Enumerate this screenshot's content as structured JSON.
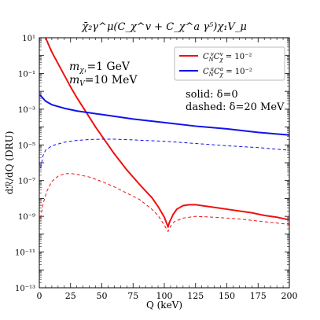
{
  "chart_data": {
    "type": "line",
    "title": "χ̄₂γ^μ(C_χ^v + C_χ^a γ⁵)χ₁V_μ",
    "xlabel": "Q (keV)",
    "ylabel": "dℛ/dQ (DRU)",
    "xlim": [
      0,
      200
    ],
    "ylim_log10": [
      -13,
      1
    ],
    "y_scale": "log",
    "x_ticks": [
      0,
      25,
      50,
      75,
      100,
      125,
      150,
      175,
      200
    ],
    "y_ticks": [
      {
        "exp": 1,
        "label": "10¹"
      },
      {
        "exp": -1,
        "label": "10⁻¹"
      },
      {
        "exp": -3,
        "label": "10⁻³"
      },
      {
        "exp": -5,
        "label": "10⁻⁵"
      },
      {
        "exp": -7,
        "label": "10⁻⁷"
      },
      {
        "exp": -9,
        "label": "10⁻⁹"
      },
      {
        "exp": -11,
        "label": "10⁻¹¹"
      },
      {
        "exp": -13,
        "label": "10⁻¹³"
      }
    ],
    "annotations": [
      {
        "text": "m_χ1=1 GeV",
        "main": "m",
        "sub": "χ₁",
        "rest": "=1 GeV"
      },
      {
        "text": "m_V=10 MeV",
        "main": "m",
        "sub": "V",
        "rest": "=10 MeV"
      },
      {
        "text": "solid: δ=0"
      },
      {
        "text": "dashed: δ=20 MeV"
      }
    ],
    "legend_position": "top-right",
    "series": [
      {
        "name": "C_N^v C_χ^v = 10⁻²",
        "legend_main": "C",
        "legend_sub1": "N",
        "legend_sup1": "v",
        "legend_main2": "C",
        "legend_sub2": "χ",
        "legend_sup2": "v",
        "legend_rest": " = 10⁻²",
        "color": "#ee1111",
        "style": "solid",
        "points": [
          [
            0.5,
            3.0
          ],
          [
            2,
            1.8
          ],
          [
            5,
            1.0
          ],
          [
            10,
            0.2
          ],
          [
            15,
            -0.45
          ],
          [
            20,
            -1.1
          ],
          [
            25,
            -1.75
          ],
          [
            30,
            -2.35
          ],
          [
            35,
            -2.9
          ],
          [
            40,
            -3.45
          ],
          [
            45,
            -4.0
          ],
          [
            50,
            -4.5
          ],
          [
            60,
            -5.5
          ],
          [
            70,
            -6.4
          ],
          [
            80,
            -7.2
          ],
          [
            90,
            -7.95
          ],
          [
            95,
            -8.45
          ],
          [
            100,
            -9.05
          ],
          [
            103,
            -9.6
          ],
          [
            104,
            -9.35
          ],
          [
            107,
            -8.9
          ],
          [
            110,
            -8.6
          ],
          [
            115,
            -8.4
          ],
          [
            120,
            -8.35
          ],
          [
            125,
            -8.35
          ],
          [
            130,
            -8.4
          ],
          [
            140,
            -8.5
          ],
          [
            150,
            -8.6
          ],
          [
            160,
            -8.7
          ],
          [
            170,
            -8.8
          ],
          [
            180,
            -8.95
          ],
          [
            190,
            -9.05
          ],
          [
            200,
            -9.2
          ]
        ]
      },
      {
        "name": "C_N^a C_χ^a = 10⁻²",
        "legend_main": "C",
        "legend_sub1": "N",
        "legend_sup1": "a",
        "legend_main2": "C",
        "legend_sub2": "χ",
        "legend_sup2": "a",
        "legend_rest": " = 10⁻²",
        "color": "#1111ee",
        "style": "solid",
        "points": [
          [
            0.5,
            -2.2
          ],
          [
            5,
            -2.55
          ],
          [
            10,
            -2.75
          ],
          [
            20,
            -2.95
          ],
          [
            30,
            -3.1
          ],
          [
            50,
            -3.3
          ],
          [
            75,
            -3.55
          ],
          [
            100,
            -3.75
          ],
          [
            125,
            -3.95
          ],
          [
            150,
            -4.1
          ],
          [
            175,
            -4.3
          ],
          [
            200,
            -4.45
          ]
        ]
      },
      {
        "name": "",
        "color": "#1111ee",
        "style": "dashed",
        "points": [
          [
            1,
            -6.3
          ],
          [
            3,
            -5.6
          ],
          [
            5,
            -5.3
          ],
          [
            10,
            -5.05
          ],
          [
            20,
            -4.85
          ],
          [
            30,
            -4.75
          ],
          [
            40,
            -4.7
          ],
          [
            50,
            -4.68
          ],
          [
            60,
            -4.68
          ],
          [
            75,
            -4.72
          ],
          [
            100,
            -4.8
          ],
          [
            125,
            -4.92
          ],
          [
            150,
            -5.05
          ],
          [
            175,
            -5.15
          ],
          [
            200,
            -5.3
          ]
        ]
      },
      {
        "name": "",
        "color": "#ee1111",
        "style": "dashed",
        "points": [
          [
            1,
            -9.1
          ],
          [
            3,
            -8.3
          ],
          [
            6,
            -7.6
          ],
          [
            10,
            -7.05
          ],
          [
            15,
            -6.75
          ],
          [
            20,
            -6.62
          ],
          [
            25,
            -6.6
          ],
          [
            30,
            -6.65
          ],
          [
            40,
            -6.8
          ],
          [
            50,
            -7.05
          ],
          [
            60,
            -7.35
          ],
          [
            70,
            -7.7
          ],
          [
            80,
            -8.05
          ],
          [
            90,
            -8.6
          ],
          [
            95,
            -8.95
          ],
          [
            100,
            -9.5
          ],
          [
            103,
            -9.85
          ],
          [
            105,
            -9.55
          ],
          [
            108,
            -9.3
          ],
          [
            115,
            -9.1
          ],
          [
            125,
            -9.0
          ],
          [
            140,
            -9.05
          ],
          [
            160,
            -9.15
          ],
          [
            180,
            -9.3
          ],
          [
            200,
            -9.45
          ]
        ]
      }
    ]
  }
}
